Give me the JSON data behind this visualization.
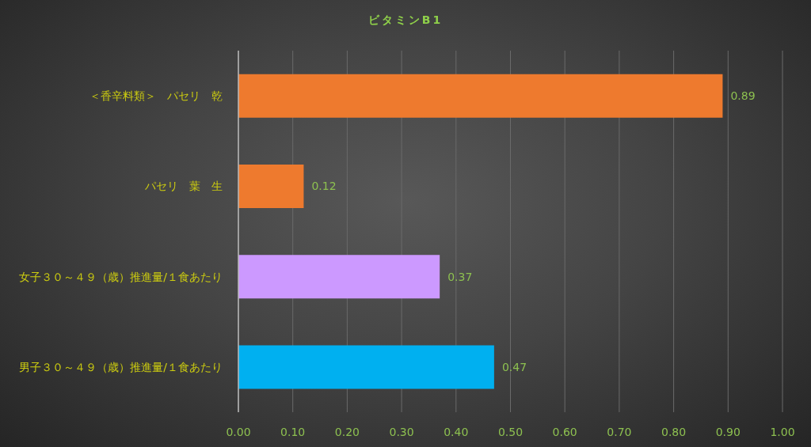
{
  "chart_data": {
    "type": "bar",
    "orientation": "horizontal",
    "title": "ビタミンB1",
    "categories": [
      "＜香辛料類＞　パセリ　乾",
      "パセリ　葉　生",
      "女子３０～４９（歳）推進量/１食あたり",
      "男子３０～４９（歳）推進量/１食あたり"
    ],
    "values": [
      0.89,
      0.12,
      0.37,
      0.47
    ],
    "colors": [
      "#ee7a2e",
      "#ee7a2e",
      "#cc99ff",
      "#00b0f0"
    ],
    "xlim": [
      0,
      1
    ],
    "xticks": [
      {
        "value": 0,
        "label": "0.00"
      },
      {
        "value": 0.1,
        "label": "0.10"
      },
      {
        "value": 0.2,
        "label": "0.20"
      },
      {
        "value": 0.3,
        "label": "0.30"
      },
      {
        "value": 0.4,
        "label": "0.40"
      },
      {
        "value": 0.5,
        "label": "0.50"
      },
      {
        "value": 0.6,
        "label": "0.60"
      },
      {
        "value": 0.7,
        "label": "0.70"
      },
      {
        "value": 0.8,
        "label": "0.80"
      },
      {
        "value": 0.9,
        "label": "0.90"
      },
      {
        "value": 1,
        "label": "1.00"
      }
    ],
    "grid": "x",
    "data_labels": true
  }
}
